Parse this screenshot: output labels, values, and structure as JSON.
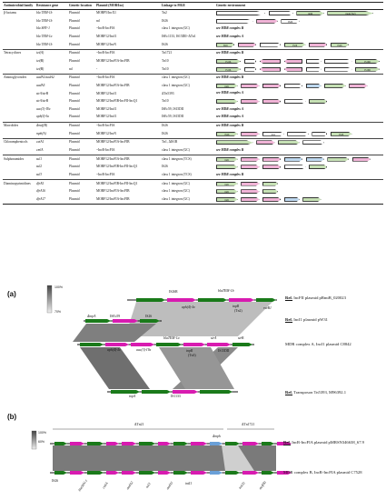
{
  "table": {
    "headers": [
      "Antimicrobial family",
      "Resistance gene",
      "Genetic location",
      "Plasmid (MOB/Inc)",
      "Linkage to MGE",
      "Genetic environment"
    ],
    "rows": [
      {
        "family": "β-lactams",
        "gene": "bla TEM-1b",
        "loc": "Plasmid",
        "plasmid": "MOBP5/IncX1",
        "mge": "Tn2",
        "env": "arrows",
        "arrows": [
          [
            "w",
            "r",
            0,
            32,
            ""
          ],
          [
            "w",
            "r",
            34,
            16,
            ""
          ],
          [
            "g",
            "r",
            52,
            18,
            "tnpR"
          ],
          [
            "g",
            "r",
            72,
            30,
            "tnpA(Tn2)"
          ]
        ]
      },
      {
        "family": "",
        "gene": "bla TEM-1b",
        "loc": "Plasmid",
        "plasmid": "nd",
        "mge": "IS26",
        "env": "arrows",
        "arrows": [
          [
            "w",
            "r",
            0,
            24,
            ""
          ],
          [
            "p",
            "r",
            26,
            14,
            ""
          ],
          [
            "w",
            "r",
            42,
            12,
            "IS26"
          ]
        ]
      },
      {
        "family": "",
        "gene": "bla SHV-1",
        "loc": "Plasmid",
        "plasmid": "~IncR-IncFIA",
        "mge": "class 1 integron (GC)",
        "env": "see MDR complex B"
      },
      {
        "family": "",
        "gene": "bla TEM-1a",
        "loc": "Plasmid",
        "plasmid": "MOBF12/IncI1",
        "mge": "ISEc1133, IS15DII~ΔTn1",
        "env": "see MDR complex A"
      },
      {
        "family": "",
        "gene": "bla TEM-1b",
        "loc": "Plasmid",
        "plasmid": "MOBF12/IncN",
        "mge": "IS26",
        "env": "arrows",
        "arrows": [
          [
            "g",
            "r",
            0,
            12,
            "IS26"
          ],
          [
            "p",
            "r",
            14,
            12,
            ""
          ],
          [
            "w",
            "r",
            28,
            14,
            ""
          ],
          [
            "g",
            "r",
            44,
            14,
            "IS26"
          ],
          [
            "p",
            "r",
            60,
            12,
            ""
          ],
          [
            "g",
            "r",
            74,
            12,
            "IS26"
          ]
        ]
      },
      {
        "family": "Tetracyclines",
        "gene": "tet(A)",
        "loc": "Plasmid",
        "plasmid": "~IncR-IncFIA",
        "mge": "Tn1721",
        "env": "see MDR complex B",
        "group": true
      },
      {
        "family": "",
        "gene": "tet(B)",
        "loc": "Plasmid",
        "plasmid": "MOBF12/IncFIA-IncFIB",
        "mge": "Tn10",
        "env": "arrows",
        "arrows": [
          [
            "g",
            "r",
            0,
            16,
            "IS10L"
          ],
          [
            "w",
            "r",
            18,
            8,
            ""
          ],
          [
            "p",
            "l",
            28,
            14,
            ""
          ],
          [
            "p",
            "l",
            44,
            12,
            ""
          ],
          [
            "w",
            "r",
            58,
            10,
            ""
          ],
          [
            "w",
            "r",
            70,
            18,
            ""
          ],
          [
            "g",
            "r",
            90,
            16,
            "IS10R"
          ]
        ]
      },
      {
        "family": "",
        "gene": "tet(B)",
        "loc": "nd",
        "plasmid": "-",
        "mge": "Tn10",
        "env": "arrows",
        "arrows": [
          [
            "g",
            "r",
            0,
            16,
            "IS10L"
          ],
          [
            "w",
            "r",
            18,
            8,
            ""
          ],
          [
            "p",
            "l",
            28,
            14,
            ""
          ],
          [
            "p",
            "l",
            44,
            12,
            ""
          ],
          [
            "w",
            "r",
            58,
            10,
            ""
          ],
          [
            "w",
            "r",
            70,
            18,
            ""
          ],
          [
            "g",
            "r",
            90,
            16,
            "IS10R"
          ]
        ]
      },
      {
        "family": "Aminoglycosides",
        "gene": "aadA1/aadA2",
        "loc": "Plasmid",
        "plasmid": "~IncR-IncFIA",
        "mge": "class 1 integron (GC)",
        "env": "see MDR complex B",
        "group": true
      },
      {
        "family": "",
        "gene": "aadA5",
        "loc": "Plasmid",
        "plasmid": "MOBF12/IncFIA-IncFIB",
        "mge": "class 1 integron (GC)",
        "env": "arrows",
        "arrows": [
          [
            "g",
            "r",
            0,
            14,
            "intI1"
          ],
          [
            "p",
            "r",
            16,
            12,
            ""
          ],
          [
            "p",
            "r",
            30,
            12,
            ""
          ],
          [
            "w",
            "r",
            44,
            12,
            ""
          ],
          [
            "b",
            "r",
            58,
            10,
            ""
          ],
          [
            "g",
            "r",
            70,
            14,
            ""
          ],
          [
            "p",
            "r",
            86,
            12,
            ""
          ]
        ]
      },
      {
        "family": "",
        "gene": "strA/strB",
        "loc": "Plasmid",
        "plasmid": "MOBF12/IncI1",
        "mge": "ΔTn5393",
        "env": "see MDR complex A"
      },
      {
        "family": "",
        "gene": "strA/strB",
        "loc": "Plasmid",
        "plasmid": "MOBF12/IncFIB-IncFII-IncQ1",
        "mge": "Tn10",
        "env": "arrows",
        "arrows": [
          [
            "g",
            "r",
            0,
            14,
            ""
          ],
          [
            "p",
            "r",
            16,
            12,
            ""
          ],
          [
            "p",
            "r",
            30,
            12,
            ""
          ],
          [
            "w",
            "r",
            44,
            14,
            ""
          ],
          [
            "g",
            "r",
            60,
            12,
            ""
          ]
        ]
      },
      {
        "family": "",
        "gene": "aac(3)-IVa",
        "loc": "Plasmid",
        "plasmid": "MOBF12/IncI1",
        "mge": "ISEc59, IS15DII",
        "env": "see MDR complex A"
      },
      {
        "family": "",
        "gene": "aph(4)-Ia",
        "loc": "Plasmid",
        "plasmid": "MOBF12/IncI1",
        "mge": "ISEc59, IS15DII",
        "env": "see MDR complex A"
      },
      {
        "family": "Macrolides",
        "gene": "Δmef(B)",
        "loc": "Plasmid",
        "plasmid": "~IncR-IncFIA",
        "mge": "IS26",
        "env": "see MDR complex B",
        "group": true
      },
      {
        "family": "",
        "gene": "mph(A)",
        "loc": "Plasmid",
        "plasmid": "MOBF12/IncN",
        "mge": "IS26",
        "env": "arrows",
        "arrows": [
          [
            "g",
            "r",
            0,
            14,
            "IS26"
          ],
          [
            "p",
            "r",
            16,
            12,
            ""
          ],
          [
            "w",
            "r",
            30,
            14,
            "mrx"
          ],
          [
            "w",
            "r",
            46,
            14,
            ""
          ],
          [
            "w",
            "r",
            62,
            10,
            ""
          ],
          [
            "g",
            "r",
            74,
            14,
            "IS26"
          ]
        ]
      },
      {
        "family": "Chloramphenicols",
        "gene": "catA1",
        "loc": "Plasmid",
        "plasmid": "MOBF12/IncFIA-IncFIB",
        "mge": "Tn1, ΔIS1R",
        "env": "arrows",
        "group": true,
        "arrows": [
          [
            "g",
            "r",
            0,
            24,
            ""
          ],
          [
            "p",
            "r",
            26,
            12,
            ""
          ],
          [
            "g",
            "r",
            40,
            14,
            ""
          ],
          [
            "w",
            "r",
            56,
            14,
            ""
          ]
        ]
      },
      {
        "family": "",
        "gene": "cmlA",
        "loc": "Plasmid",
        "plasmid": "~IncR-IncFIA",
        "mge": "class 1 integron (GC)",
        "env": "see MDR complex B"
      },
      {
        "family": "Sulphonamides",
        "gene": "sul1",
        "loc": "Plasmid",
        "plasmid": "MOBF12/IncFIA-IncFIB",
        "mge": "class 1 integron (3'CS)",
        "env": "arrows",
        "group": true,
        "arrows": [
          [
            "g",
            "r",
            0,
            14,
            "intI1"
          ],
          [
            "p",
            "r",
            16,
            12,
            ""
          ],
          [
            "p",
            "r",
            30,
            12,
            ""
          ],
          [
            "b",
            "r",
            44,
            12,
            ""
          ],
          [
            "b",
            "r",
            58,
            12,
            ""
          ],
          [
            "g",
            "r",
            72,
            14,
            ""
          ],
          [
            "p",
            "r",
            88,
            12,
            ""
          ]
        ]
      },
      {
        "family": "",
        "gene": "sul2",
        "loc": "Plasmid",
        "plasmid": "MOBF12/IncFIB-IncFII-IncQ1",
        "mge": "IS26",
        "env": "arrows",
        "arrows": [
          [
            "g",
            "r",
            0,
            14,
            ""
          ],
          [
            "p",
            "r",
            16,
            12,
            ""
          ],
          [
            "p",
            "r",
            30,
            12,
            ""
          ],
          [
            "w",
            "r",
            44,
            14,
            ""
          ],
          [
            "g",
            "r",
            60,
            12,
            ""
          ]
        ]
      },
      {
        "family": "",
        "gene": "sul3",
        "loc": "Plasmid",
        "plasmid": "~IncR-IncFIA",
        "mge": "class 1 integron (3'CS)",
        "env": "see MDR complex B"
      },
      {
        "family": "Diaminopyrimidines",
        "gene": "dfrA5",
        "loc": "Plasmid",
        "plasmid": "MOBF12/IncFIB-IncFII-IncQ1",
        "mge": "class 1 integron (GC)",
        "env": "arrows",
        "group": true,
        "arrows": [
          [
            "g",
            "r",
            0,
            14,
            "intI1"
          ],
          [
            "p",
            "r",
            16,
            12,
            ""
          ],
          [
            "g",
            "r",
            30,
            10,
            ""
          ]
        ]
      },
      {
        "family": "",
        "gene": "dfrA16",
        "loc": "Plasmid",
        "plasmid": "MOBF12/IncFIA-IncFIB",
        "mge": "class 1 integron (GC)",
        "env": "arrows",
        "arrows": [
          [
            "g",
            "r",
            0,
            14,
            "intI1"
          ],
          [
            "p",
            "r",
            16,
            12,
            ""
          ],
          [
            "g",
            "r",
            30,
            10,
            ""
          ]
        ]
      },
      {
        "family": "",
        "gene": "dfrA17",
        "loc": "Plasmid",
        "plasmid": "MOBF12/IncFIA-IncFIB",
        "mge": "class 1 integron (GC)",
        "env": "arrows",
        "arrows": [
          [
            "g",
            "r",
            0,
            14,
            "intI1"
          ],
          [
            "p",
            "r",
            16,
            12,
            ""
          ],
          [
            "p",
            "r",
            30,
            12,
            ""
          ],
          [
            "b",
            "r",
            44,
            10,
            ""
          ],
          [
            "g",
            "r",
            56,
            12,
            ""
          ]
        ]
      }
    ]
  },
  "panel_a": {
    "label": "(a)",
    "scale_top": "100%",
    "scale_bottom": "70%",
    "labels": [
      "IS26R",
      "blaTEM-1b",
      "aph(4)-Ia",
      "tnpR",
      "(Tn2)",
      "rsvB1",
      "ΔtnpA",
      "ISEc59",
      "IS26",
      "blaTEM-1a",
      "strA",
      "strB",
      "aph(4)-Ia",
      "aac(3)-IVa",
      "tnpR",
      "(Tn3)",
      "IS15DII",
      "tnpA",
      "IS1133"
    ],
    "refs": [
      {
        "bold": "Ref.",
        "text": " IncFII plasmid pRmtB_020023"
      },
      {
        "bold": "Ref.",
        "text": " IncI1 plasmid pW31"
      },
      {
        "bold": "",
        "text": "MDR complex A, IncI1 plasmid C8842"
      },
      {
        "bold": "Ref.",
        "text": " Transposon Tn5393, M96392.1"
      }
    ]
  },
  "panel_b": {
    "label": "(b)",
    "scale_top": "100%",
    "scale_bottom": "60%",
    "labels": [
      "ΔTn21",
      "ΔTn1721",
      "Δmph",
      "IS26",
      "blaSHV-1",
      "cmlA",
      "aadA2",
      "sul3",
      "aadA1",
      "intI1",
      "tet(A)",
      "mef(B)"
    ],
    "refs": [
      {
        "bold": "Ref.",
        "text": " IncR-IncFIA plasmid pMRSN346638_67.9"
      },
      {
        "bold": "",
        "text": "MDR complex B, IncR-IncFIA plasmid C7528"
      }
    ]
  }
}
